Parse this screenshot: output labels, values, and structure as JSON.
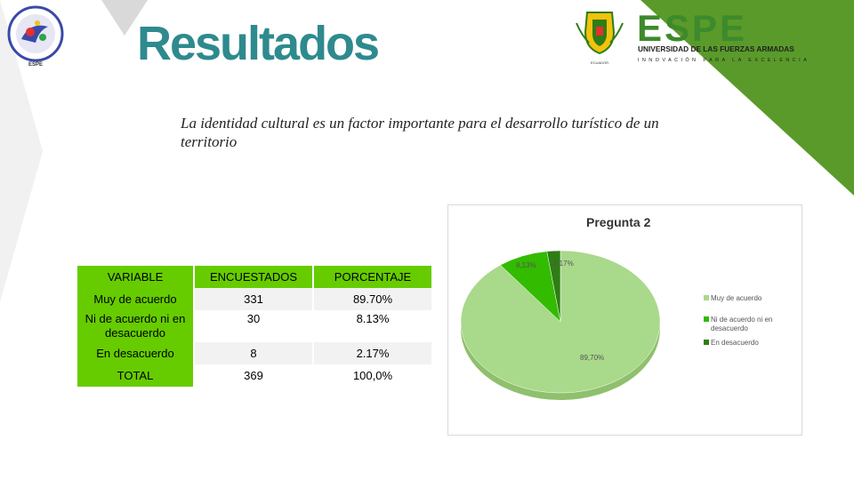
{
  "header": {
    "title": "Resultados"
  },
  "logos": {
    "left_logo_text": "ESPE",
    "right_brand": "ESPE",
    "right_university": "UNIVERSIDAD DE LAS FUERZAS ARMADAS",
    "right_tagline": "INNOVACIÓN PARA LA EXCELENCIA",
    "crest_caption": "ECUADOR"
  },
  "statement": "La identidad cultural es un factor importante para el desarrollo turístico de un territorio",
  "table": {
    "headers": [
      "VARIABLE",
      "ENCUESTADOS",
      "PORCENTAJE"
    ],
    "rows": [
      [
        "Muy de acuerdo",
        "331",
        "89.70%"
      ],
      [
        "Ni de acuerdo ni en desacuerdo",
        "30",
        "8.13%"
      ],
      [
        "En desacuerdo",
        "8",
        "2.17%"
      ],
      [
        "TOTAL",
        "369",
        "100,0%"
      ]
    ]
  },
  "chart_data": {
    "type": "pie",
    "title": "Pregunta 2",
    "categories": [
      "Muy de acuerdo",
      "Ni de acuerdo ni en desacuerdo",
      "En desacuerdo"
    ],
    "values": [
      89.7,
      8.13,
      2.17
    ],
    "data_labels": [
      "89,70%",
      "8,13%",
      "2,17%"
    ],
    "colors": [
      "#a9d98a",
      "#33bb00",
      "#2f7d15"
    ],
    "legend_position": "right"
  },
  "colors": {
    "title": "#2e8a8e",
    "table_green": "#66cc00",
    "corner_green": "#5a9a2a"
  }
}
